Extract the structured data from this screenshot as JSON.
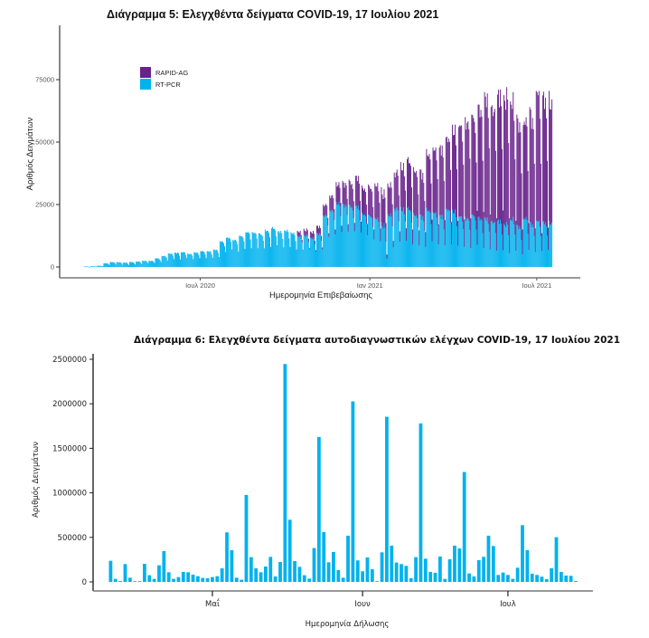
{
  "chart_data": [
    {
      "type": "bar",
      "stacked": true,
      "title": "Διάγραμμα 5: Ελεγχθέντα δείγματα COVID-19, 17 Ιουλίου 2021",
      "xlabel": "Ημερομηνία Επιβεβαίωσης",
      "ylabel": "Αριθμός Δειγμάτων",
      "ylim": [
        0,
        92000
      ],
      "yticks": [
        0,
        25000,
        50000,
        75000
      ],
      "ytick_labels": [
        "0",
        "25000",
        "50000",
        "75000"
      ],
      "xticks": [
        {
          "label": "Ιουλ 2020",
          "date": "2020-07-01"
        },
        {
          "label": "Ιαν 2021",
          "date": "2021-01-01"
        },
        {
          "label": "Ιουλ 2021",
          "date": "2021-07-01"
        }
      ],
      "x_range": [
        "2020-02-26",
        "2021-07-17"
      ],
      "legend": {
        "position": "top-left",
        "entries": [
          {
            "name": "RAPID-AG",
            "color": "#68228b"
          },
          {
            "name": "RT-PCR",
            "color": "#00b2ee"
          }
        ]
      },
      "grid": false,
      "note": "Daily values; weekly envelopes (weekday high / weekend low) listed per week starting 2020-02-26",
      "series": [
        {
          "name": "RT-PCR",
          "color": "#00b2ee",
          "weekly_high": [
            200,
            300,
            500,
            1500,
            2000,
            2000,
            1800,
            2000,
            2200,
            2500,
            2500,
            3500,
            4500,
            5500,
            5800,
            6000,
            5500,
            6000,
            6500,
            6500,
            7000,
            10500,
            12000,
            11000,
            12500,
            14000,
            14000,
            13500,
            15000,
            16000,
            14500,
            15000,
            14000,
            12500,
            13000,
            12000,
            13500,
            21000,
            23000,
            26000,
            25500,
            25000,
            24500,
            22000,
            21000,
            20000,
            18000,
            22000,
            24000,
            24000,
            24000,
            22000,
            21000,
            24000,
            22000,
            21000,
            24000,
            23000,
            21000,
            20000,
            21000,
            20000,
            20000,
            19000,
            19000,
            18000,
            20000,
            17000,
            20000,
            18000,
            18500
          ],
          "weekly_low": [
            0,
            100,
            300,
            800,
            1000,
            900,
            800,
            1000,
            1200,
            1500,
            1500,
            2000,
            2500,
            3000,
            3000,
            3500,
            3000,
            3500,
            3500,
            3500,
            4000,
            6000,
            7000,
            6000,
            7000,
            7500,
            7500,
            7000,
            8000,
            8500,
            7500,
            8000,
            7000,
            6500,
            7000,
            6000,
            7000,
            12000,
            13000,
            14000,
            14000,
            13500,
            13000,
            12000,
            11000,
            10000,
            3000,
            7000,
            10000,
            10500,
            9000,
            8500,
            8000,
            9500,
            9000,
            8000,
            9000,
            8500,
            8000,
            7500,
            8000,
            7000,
            7000,
            6500,
            6000,
            5500,
            6500,
            5000,
            6000,
            5500,
            6000
          ]
        },
        {
          "name": "RAPID-AG",
          "color": "#68228b",
          "weekly_high": [
            0,
            0,
            0,
            0,
            0,
            0,
            0,
            0,
            0,
            0,
            0,
            0,
            0,
            0,
            0,
            0,
            0,
            0,
            0,
            0,
            0,
            0,
            0,
            0,
            0,
            0,
            0,
            0,
            0,
            0,
            0,
            0,
            0,
            2000,
            2500,
            2500,
            3000,
            4500,
            6000,
            8000,
            9000,
            10000,
            12000,
            11000,
            12000,
            14000,
            14000,
            13000,
            15000,
            18000,
            20000,
            19000,
            18000,
            24000,
            26000,
            28000,
            30000,
            34000,
            38000,
            40000,
            40000,
            45000,
            50000,
            48000,
            52000,
            54000,
            50000,
            44000,
            40000,
            46000,
            52000,
            62000,
            72000
          ],
          "weekly_low": [
            0,
            0,
            0,
            0,
            0,
            0,
            0,
            0,
            0,
            0,
            0,
            0,
            0,
            0,
            0,
            0,
            0,
            0,
            0,
            0,
            0,
            0,
            0,
            0,
            0,
            0,
            0,
            0,
            0,
            0,
            0,
            0,
            0,
            300,
            500,
            500,
            800,
            1500,
            2000,
            2500,
            3000,
            3000,
            4000,
            4000,
            4000,
            5000,
            1500,
            2000,
            4000,
            5000,
            6000,
            6000,
            6000,
            8000,
            8000,
            9000,
            9000,
            10000,
            11000,
            12000,
            12000,
            13000,
            14000,
            13000,
            14000,
            14000,
            12000,
            10000,
            9000,
            8000,
            6000,
            5000,
            5000
          ]
        }
      ]
    },
    {
      "type": "bar",
      "title": "Διάγραμμα 6: Ελεγχθέντα δείγματα αυτοδιαγνωστικών ελέγχων COVID-19, 17 Ιουλίου 2021",
      "xlabel": "Ημερομηνία Δήλωσης",
      "ylabel": "Αριθμός Δειγμάτων",
      "ylim": [
        0,
        2500000
      ],
      "yticks": [
        0,
        500000,
        1000000,
        1500000,
        2000000,
        2500000
      ],
      "ytick_labels": [
        "0",
        "500000",
        "1000000",
        "1500000",
        "2000000",
        "2500000"
      ],
      "xticks": [
        {
          "label": "Μαΐ",
          "index": 21
        },
        {
          "label": "Ιουν",
          "index": 52
        },
        {
          "label": "Ιουλ",
          "index": 82
        }
      ],
      "grid": false,
      "color": "#00b2ee",
      "values": [
        237000,
        34000,
        10000,
        200000,
        47000,
        6000,
        3000,
        203000,
        75000,
        34000,
        186000,
        346000,
        108000,
        34000,
        54000,
        112000,
        108000,
        81000,
        64000,
        44000,
        41000,
        54000,
        64000,
        152000,
        556000,
        356000,
        47000,
        24000,
        976000,
        278000,
        153000,
        108000,
        173000,
        281000,
        61000,
        224000,
        2447000,
        698000,
        234000,
        169000,
        75000,
        37000,
        380000,
        1627000,
        559000,
        220000,
        336000,
        132000,
        47000,
        519000,
        2027000,
        241000,
        119000,
        275000,
        142000,
        3000,
        332000,
        1854000,
        407000,
        217000,
        200000,
        180000,
        41000,
        278000,
        1780000,
        261000,
        112000,
        102000,
        285000,
        34000,
        254000,
        407000,
        376000,
        1234000,
        95000,
        61000,
        244000,
        281000,
        519000,
        403000,
        78000,
        105000,
        78000,
        34000,
        159000,
        637000,
        356000,
        92000,
        78000,
        58000,
        31000,
        153000,
        502000,
        112000,
        71000,
        68000,
        10000
      ]
    }
  ]
}
